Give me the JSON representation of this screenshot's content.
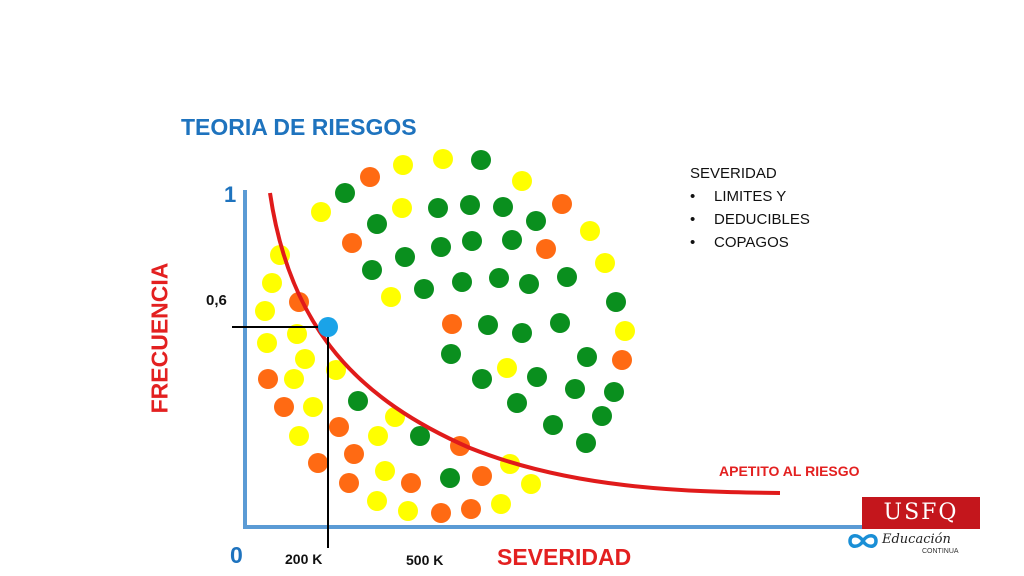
{
  "title": "TEORIA DE RIESGOS",
  "notes": {
    "heading": "SEVERIDAD",
    "bullets": [
      "LIMITES Y",
      "DEDUCIBLES",
      "COPAGOS"
    ]
  },
  "axes": {
    "y_label": "FRECUENCIA",
    "x_label": "SEVERIDAD",
    "y_top": "1",
    "origin": "0",
    "y_mark": "0,6",
    "x_mark_1": "200 K",
    "x_mark_2": "500 K"
  },
  "curve_label": "APETITO AL RIESGO",
  "colors": {
    "axis": "#5b9bd5",
    "curve": "#e01b1b",
    "point": "#1aa3e8",
    "yellow": "#ffff00",
    "orange": "#ff6a13",
    "green": "#0a8f1e"
  },
  "logo": {
    "name": "USFQ",
    "line1": "Educación",
    "line2": "CONTINUA"
  }
}
